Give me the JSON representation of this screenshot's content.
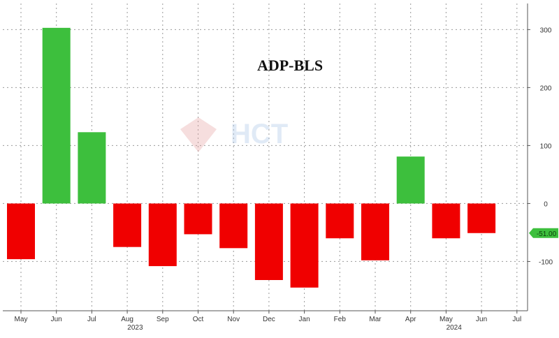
{
  "chart_data": {
    "type": "bar",
    "title": "ADP-BLS",
    "categories": [
      "May",
      "Jun",
      "Jul",
      "Aug",
      "Sep",
      "Oct",
      "Nov",
      "Dec",
      "Jan",
      "Feb",
      "Mar",
      "Apr",
      "May",
      "Jun",
      "Jul"
    ],
    "year_labels": [
      {
        "label": "2023",
        "under": "Jul"
      },
      {
        "label": "2024",
        "under": "Apr"
      }
    ],
    "values": [
      -96,
      303,
      123,
      -75,
      -108,
      -53,
      -77,
      -132,
      -145,
      -60,
      -98,
      81,
      -60,
      -51,
      null
    ],
    "ylim": [
      -185,
      345
    ],
    "yticks": [
      -100,
      0,
      100,
      200,
      300
    ],
    "y_axis_side": "right",
    "grid": true,
    "colors": {
      "positive": "#3dbf3d",
      "negative": "#f00000",
      "last_value_badge": "#3dbf3d"
    },
    "last_value_label": "-51.00",
    "watermark": "HCT"
  }
}
